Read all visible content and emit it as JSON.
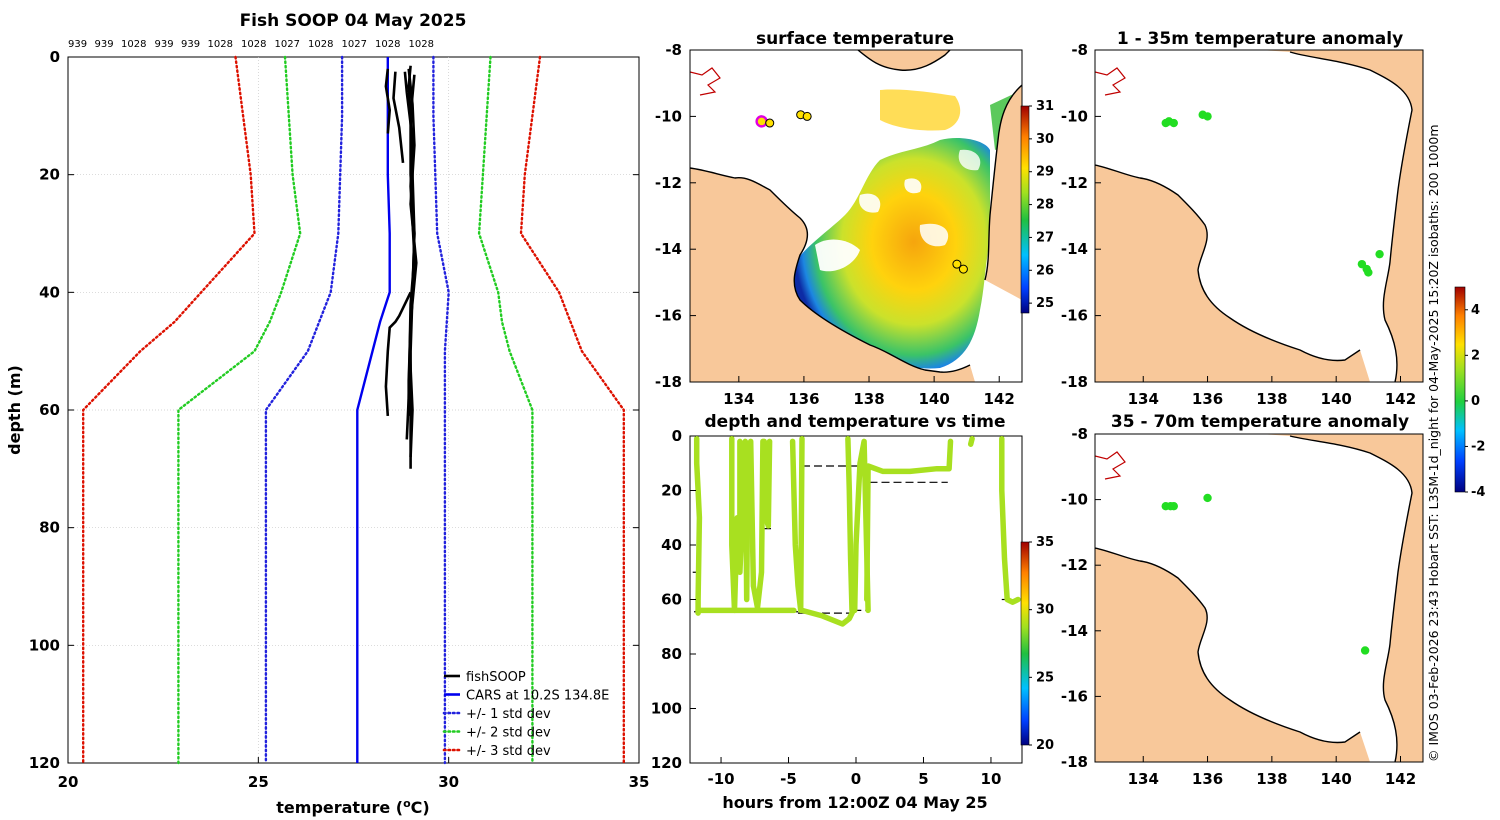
{
  "colors": {
    "profile": "#000000",
    "cars": "#0000ee",
    "std1": "#2222dd",
    "std2": "#22cc22",
    "std3": "#dd1100",
    "land": "#f8c89a",
    "track": "#a8e020",
    "track_mid": "#58d030",
    "anomaly": "#22dd22"
  },
  "chart_data": [
    {
      "type": "line",
      "title": "Fish SOOP 04 May 2025",
      "xlabel": "temperature (°C)",
      "xlabel_base": "temperature (",
      "xlabel_sup": "o",
      "xlabel_end": "C)",
      "ylabel": "depth (m)",
      "xlim": [
        20,
        35
      ],
      "ylim": [
        0,
        120
      ],
      "y_inverted": true,
      "grid": true,
      "xticks": [
        20,
        25,
        30,
        35
      ],
      "yticks": [
        0,
        20,
        40,
        60,
        80,
        100,
        120
      ],
      "pressure_labels": [
        "939",
        "939",
        "1028",
        "939",
        "939",
        "1028",
        "1028",
        "1027",
        "1028",
        "1027",
        "1028",
        "1028"
      ],
      "legend": [
        "fishSOOP",
        "CARS at 10.2S 134.8E",
        "+/- 1 std dev",
        "+/- 2 std dev",
        "+/- 3 std dev"
      ],
      "legend_position": "bottom-right",
      "series": [
        {
          "name": "CARS at 10.2S 134.8E",
          "style": "solid",
          "color_key": "cars",
          "depth": [
            0,
            10,
            20,
            30,
            40,
            45,
            50,
            60,
            80,
            100,
            120
          ],
          "temp": [
            28.4,
            28.4,
            28.4,
            28.45,
            28.45,
            28.2,
            28.0,
            27.6,
            27.6,
            27.6,
            27.6
          ]
        },
        {
          "name": "+/- 1 std dev",
          "style": "dotted",
          "color_key": "std1",
          "depth": [
            0,
            10,
            20,
            30,
            40,
            45,
            50,
            60,
            80,
            100,
            120
          ],
          "temp_low": [
            27.2,
            27.2,
            27.15,
            27.1,
            26.9,
            26.6,
            26.3,
            25.2,
            25.2,
            25.2,
            25.2
          ],
          "temp_high": [
            29.6,
            29.6,
            29.65,
            29.7,
            30.0,
            29.95,
            29.9,
            29.9,
            29.9,
            29.9,
            29.9
          ]
        },
        {
          "name": "+/- 2 std dev",
          "style": "dotted",
          "color_key": "std2",
          "depth": [
            0,
            10,
            20,
            30,
            40,
            45,
            50,
            60,
            80,
            100,
            120
          ],
          "temp_low": [
            25.7,
            25.8,
            25.9,
            26.1,
            25.6,
            25.3,
            24.9,
            22.9,
            22.9,
            22.9,
            22.9
          ],
          "temp_high": [
            31.1,
            31.0,
            30.9,
            30.8,
            31.3,
            31.4,
            31.6,
            32.2,
            32.2,
            32.2,
            32.2
          ]
        },
        {
          "name": "+/- 3 std dev",
          "style": "dotted",
          "color_key": "std3",
          "depth": [
            0,
            10,
            20,
            30,
            40,
            45,
            50,
            60,
            80,
            100,
            120
          ],
          "temp_low": [
            24.4,
            24.6,
            24.8,
            24.9,
            23.5,
            22.8,
            21.9,
            20.4,
            20.4,
            20.4,
            20.4
          ],
          "temp_high": [
            32.4,
            32.2,
            32.0,
            31.9,
            32.9,
            33.2,
            33.5,
            34.6,
            34.6,
            34.6,
            34.6
          ]
        },
        {
          "name": "fishSOOP",
          "style": "solid",
          "color_key": "profile",
          "profiles": [
            {
              "depth": [
                1.5,
                5,
                10,
                20,
                30,
                40,
                50,
                60,
                66,
                70
              ],
              "temp": [
                29.0,
                28.95,
                29.0,
                29.05,
                29.1,
                29.05,
                29.0,
                29.0,
                29.0,
                29.0
              ]
            },
            {
              "depth": [
                2,
                8,
                15,
                25,
                35,
                45,
                55,
                61
              ],
              "temp": [
                28.95,
                29.05,
                29.1,
                29.0,
                29.15,
                29.0,
                28.95,
                28.95
              ]
            },
            {
              "depth": [
                3,
                10,
                20,
                30,
                40,
                50,
                60,
                68
              ],
              "temp": [
                29.1,
                29.0,
                29.0,
                29.1,
                29.05,
                28.98,
                29.05,
                29.0
              ]
            },
            {
              "depth": [
                2.5,
                6,
                14,
                22,
                34,
                42,
                58,
                65
              ],
              "temp": [
                28.85,
                28.9,
                29.05,
                29.0,
                29.1,
                29.0,
                28.95,
                28.9
              ]
            },
            {
              "depth": [
                2,
                5,
                9,
                13
              ],
              "temp": [
                28.4,
                28.35,
                28.45,
                28.4
              ]
            },
            {
              "depth": [
                2.5,
                7,
                12,
                18
              ],
              "temp": [
                28.6,
                28.55,
                28.7,
                28.8
              ]
            },
            {
              "depth": [
                40,
                44,
                45,
                46,
                50,
                56,
                61
              ],
              "temp": [
                29.0,
                28.7,
                28.6,
                28.45,
                28.4,
                28.35,
                28.4
              ]
            }
          ]
        }
      ]
    },
    {
      "type": "heatmap",
      "title": "surface temperature",
      "xticks": [
        134,
        136,
        138,
        140,
        142
      ],
      "yticks": [
        -8,
        -10,
        -12,
        -14,
        -16,
        -18
      ],
      "xlim": [
        132.5,
        142.7
      ],
      "ylim": [
        -18,
        -8
      ],
      "colorbar": {
        "min": 24.7,
        "max": 31,
        "ticks": [
          25,
          26,
          27,
          28,
          29,
          30,
          31
        ]
      },
      "markers": [
        {
          "lon": 134.7,
          "lat": -10.15,
          "style": "magenta-ring"
        },
        {
          "lon": 134.95,
          "lat": -10.2
        },
        {
          "lon": 135.9,
          "lat": -9.95
        },
        {
          "lon": 136.1,
          "lat": -10.0
        },
        {
          "lon": 140.7,
          "lat": -14.45
        },
        {
          "lon": 140.9,
          "lat": -14.6
        }
      ]
    },
    {
      "type": "scatter",
      "title": "depth and temperature vs time",
      "xlabel": "hours from 12:00Z 04 May 25",
      "xticks": [
        -10,
        -5,
        0,
        5,
        10
      ],
      "yticks": [
        0,
        20,
        40,
        60,
        80,
        100,
        120
      ],
      "xlim": [
        -12.3,
        12.3
      ],
      "ylim": [
        0,
        120
      ],
      "y_inverted": true,
      "colorbar": {
        "min": 20,
        "max": 35,
        "ticks": [
          20,
          25,
          30,
          35
        ]
      },
      "bottom_dashes": [
        {
          "x0": -12.0,
          "x1": -4.3,
          "depth": 64.5
        },
        {
          "x0": -4.3,
          "x1": -0.2,
          "depth": 65.0
        },
        {
          "x0": -0.2,
          "x1": 1.0,
          "depth": 64.0
        },
        {
          "x0": -4.0,
          "x1": 0.2,
          "depth": 11.0
        },
        {
          "x0": 1.0,
          "x1": 6.8,
          "depth": 17.0
        },
        {
          "x0": -6.8,
          "x1": -6.3,
          "depth": 34.0
        },
        {
          "x0": -9.1,
          "x1": -8.6,
          "depth": 41.0
        },
        {
          "x0": 10.8,
          "x1": 11.6,
          "depth": 60.0
        },
        {
          "x0": -12.1,
          "x1": -11.8,
          "depth": 50.0
        }
      ],
      "tracks": [
        {
          "t": [
            -11.8,
            -11.8,
            -11.7,
            -11.6,
            -11.7,
            -11.7
          ],
          "d": [
            1,
            10,
            20,
            30,
            60,
            65
          ]
        },
        {
          "t": [
            -11.7,
            -4.6
          ],
          "d": [
            64,
            64
          ]
        },
        {
          "t": [
            -9.2,
            -9.2,
            -9.0,
            -8.8
          ],
          "d": [
            1,
            40,
            64,
            30
          ]
        },
        {
          "t": [
            -8.6,
            -8.6,
            -8.2,
            -8.1,
            -8.0
          ],
          "d": [
            2,
            50,
            2,
            60,
            3
          ]
        },
        {
          "t": [
            -7.8,
            -7.6,
            -7.3,
            -7.0,
            -6.9
          ],
          "d": [
            2,
            55,
            63,
            50,
            2
          ]
        },
        {
          "t": [
            -6.8,
            -6.7,
            -6.5,
            -6.4
          ],
          "d": [
            2,
            30,
            33,
            2
          ]
        },
        {
          "t": [
            -4.7,
            -4.5,
            -4.3,
            -4.1,
            -4.0
          ],
          "d": [
            2,
            40,
            55,
            64,
            1
          ]
        },
        {
          "t": [
            -4.0,
            -2.5,
            -1.0,
            -0.5,
            -0.2
          ],
          "d": [
            64,
            66,
            69,
            67,
            64
          ]
        },
        {
          "t": [
            -0.6,
            -0.5,
            -0.4,
            -0.3
          ],
          "d": [
            1,
            20,
            45,
            64
          ]
        },
        {
          "t": [
            -0.1,
            0.0,
            0.3,
            0.6,
            0.9
          ],
          "d": [
            64,
            40,
            10,
            2,
            64
          ]
        },
        {
          "t": [
            0.8,
            0.9,
            2.0,
            4.0,
            6.0,
            6.9,
            7.0
          ],
          "d": [
            60,
            11,
            13,
            13,
            12,
            12,
            2
          ]
        },
        {
          "t": [
            8.5,
            8.6
          ],
          "d": [
            3,
            1
          ]
        },
        {
          "t": [
            10.8,
            10.8,
            11.0,
            11.2,
            11.6,
            12.0
          ],
          "d": [
            1,
            20,
            45,
            60,
            61,
            60
          ]
        }
      ]
    },
    {
      "type": "scatter",
      "title": "1 - 35m temperature anomaly",
      "xticks": [
        134,
        136,
        138,
        140,
        142
      ],
      "yticks": [
        -8,
        -10,
        -12,
        -14,
        -16,
        -18
      ],
      "xlim": [
        132.5,
        142.7
      ],
      "ylim": [
        -18,
        -8
      ],
      "points": [
        {
          "lon": 134.7,
          "lat": -10.2
        },
        {
          "lon": 134.8,
          "lat": -10.15
        },
        {
          "lon": 134.95,
          "lat": -10.2
        },
        {
          "lon": 135.85,
          "lat": -9.95
        },
        {
          "lon": 136.0,
          "lat": -10.0
        },
        {
          "lon": 140.8,
          "lat": -14.45
        },
        {
          "lon": 140.95,
          "lat": -14.6
        },
        {
          "lon": 141.0,
          "lat": -14.7
        },
        {
          "lon": 141.35,
          "lat": -14.15
        }
      ]
    },
    {
      "type": "scatter",
      "title": "35 - 70m temperature anomaly",
      "xticks": [
        134,
        136,
        138,
        140,
        142
      ],
      "yticks": [
        -8,
        -10,
        -12,
        -14,
        -16,
        -18
      ],
      "xlim": [
        132.5,
        142.7
      ],
      "ylim": [
        -18,
        -8
      ],
      "points": [
        {
          "lon": 134.7,
          "lat": -10.2
        },
        {
          "lon": 134.85,
          "lat": -10.2
        },
        {
          "lon": 134.95,
          "lat": -10.2
        },
        {
          "lon": 136.0,
          "lat": -9.95
        },
        {
          "lon": 140.9,
          "lat": -14.6
        }
      ],
      "colorbar": {
        "min": -4,
        "max": 5,
        "ticks": [
          -4,
          -2,
          0,
          2,
          4
        ]
      }
    }
  ],
  "footer_text": "© IMOS 03-Feb-2026 23:43 Hobart SST: L3SM-1d_night for 04-May-2025 15:20Z isobaths: 200  1000m"
}
